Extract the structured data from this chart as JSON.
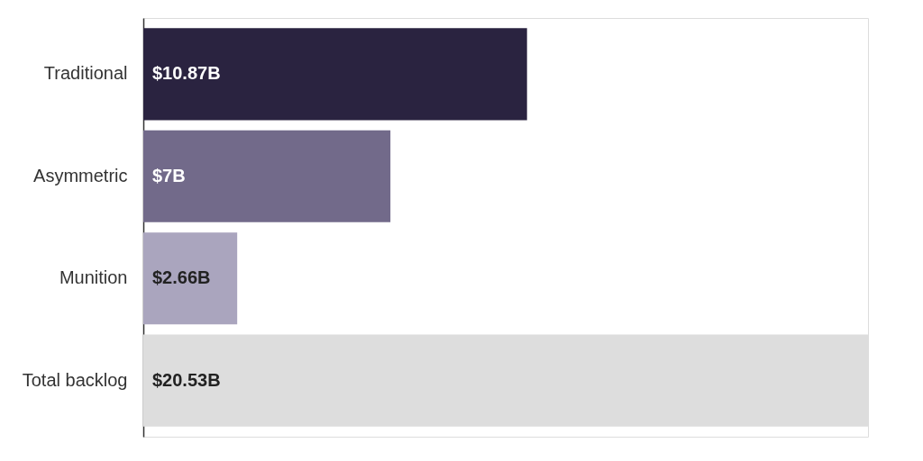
{
  "chart_data": {
    "type": "bar",
    "orientation": "horizontal",
    "categories": [
      "Traditional",
      "Asymmetric",
      "Munition",
      "Total backlog"
    ],
    "values": [
      10.87,
      7,
      2.66,
      20.53
    ],
    "colors": [
      "#2a2340",
      "#726a8a",
      "#aaa5be",
      "#dddddd"
    ],
    "value_labels": [
      "$10.87B",
      "$7B",
      "$2.66B",
      "$20.53B"
    ]
  }
}
